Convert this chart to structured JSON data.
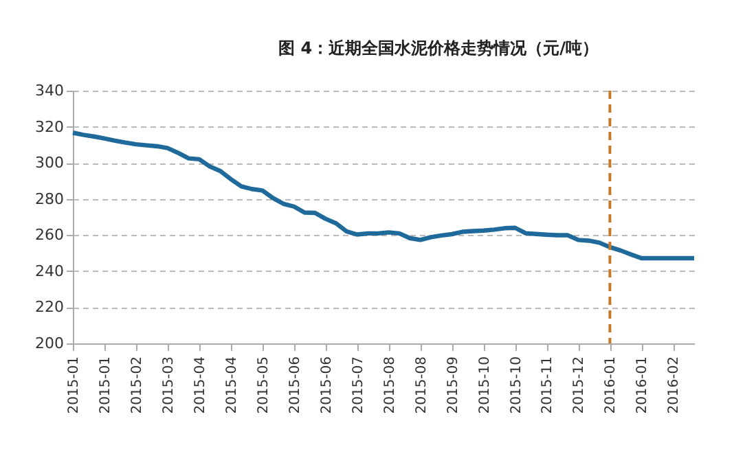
{
  "chart_data": {
    "type": "line",
    "title": "图 4：近期全国水泥价格走势情况（元/吨）",
    "categories": [
      "2015-01",
      null,
      null,
      "2015-01",
      null,
      null,
      "2015-02",
      null,
      null,
      "2015-03",
      null,
      null,
      "2015-04",
      null,
      null,
      "2015-04",
      null,
      null,
      "2015-05",
      null,
      null,
      "2015-06",
      null,
      null,
      "2015-06",
      null,
      null,
      "2015-07",
      null,
      null,
      "2015-08",
      null,
      null,
      "2015-08",
      null,
      null,
      "2015-09",
      null,
      null,
      "2015-10",
      null,
      null,
      "2015-10",
      null,
      null,
      "2015-11",
      null,
      null,
      "2015-12",
      null,
      null,
      "2016-01",
      null,
      null,
      "2016-01",
      null,
      null,
      "2016-02",
      null,
      null
    ],
    "series": [
      {
        "color": "#1f6a9a",
        "values": [
          316.7,
          315.5,
          314.6,
          313.5,
          312.3,
          311.2,
          310.3,
          309.7,
          309.2,
          308.2,
          305.5,
          302.5,
          302,
          298,
          295.5,
          291,
          287,
          285.5,
          284.7,
          280.5,
          277.3,
          275.8,
          272.5,
          272.3,
          269,
          266.5,
          262,
          260.3,
          260.9,
          260.9,
          261.5,
          260.9,
          258.3,
          257.3,
          258.8,
          259.8,
          260.5,
          261.8,
          262.2,
          262.5,
          263,
          263.8,
          264,
          261,
          260.6,
          260.2,
          259.9,
          259.9,
          257.3,
          256.9,
          255.8,
          253.3,
          251.5,
          249.3,
          247.2,
          247.2,
          247.2,
          247.2,
          247.2,
          247.2
        ]
      }
    ],
    "ylim": [
      200,
      340
    ],
    "yticks": [
      200,
      220,
      240,
      260,
      280,
      300,
      320,
      340
    ],
    "grid": "y",
    "line_style": "solid",
    "ref_lines": [
      {
        "axis": "x",
        "value": "2016-01",
        "color": "#c8782a",
        "line_style": "dashed"
      }
    ]
  }
}
